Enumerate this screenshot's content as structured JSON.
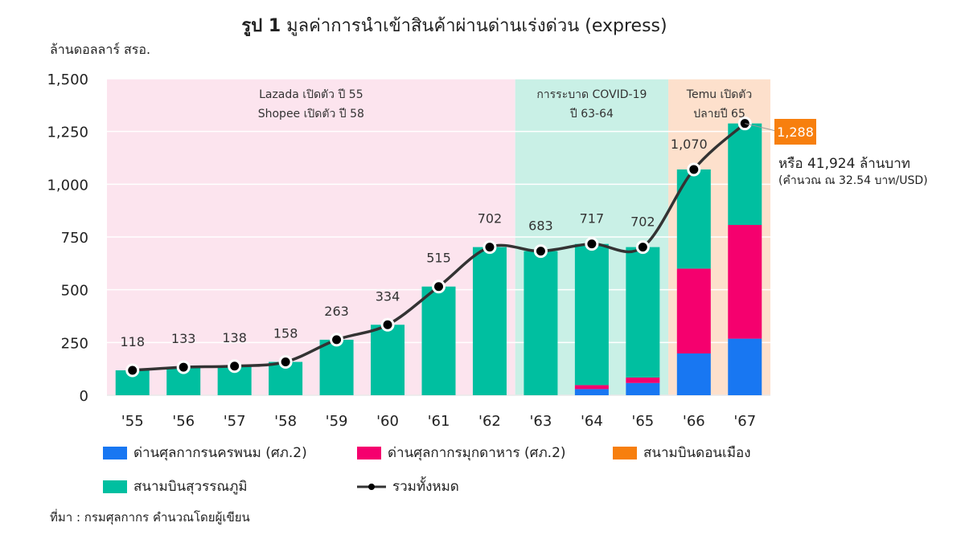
{
  "chart_data": {
    "type": "bar",
    "title_bold": "รูป 1",
    "title": "มูลค่าการนำเข้าสินค้าผ่านด่านเร่งด่วน (express)",
    "ylabel": "ล้านดอลลาร์ สรอ.",
    "ylim": [
      0,
      1500
    ],
    "yticks": [
      "0",
      "250",
      "500",
      "750",
      "1,000",
      "1,250",
      "1,500"
    ],
    "categories": [
      "'55",
      "'56",
      "'57",
      "'58",
      "'59",
      "'60",
      "'61",
      "'62",
      "'63",
      "'64",
      "'65",
      "'66",
      "'67"
    ],
    "series": [
      {
        "name": "ด่านศุลกากรนครพนม (ศภ.2)",
        "color": "#1877f2",
        "values": [
          0,
          0,
          0,
          0,
          0,
          0,
          0,
          0,
          0,
          29,
          58,
          198,
          268
        ]
      },
      {
        "name": "ด่านศุลกากรมุกดาหาร (ศภ.2)",
        "color": "#f5006e",
        "values": [
          0,
          0,
          0,
          0,
          0,
          0,
          0,
          0,
          0,
          19,
          26,
          402,
          539
        ]
      },
      {
        "name": "สนามบินดอนเมือง",
        "color": "#f77f0e",
        "values": [
          0,
          0,
          0,
          0,
          0,
          0,
          0,
          0,
          0,
          0,
          0,
          0,
          0
        ]
      },
      {
        "name": "สนามบินสุวรรณภูมิ",
        "color": "#00bfa0",
        "values": [
          118,
          133,
          138,
          158,
          263,
          334,
          515,
          702,
          683,
          669,
          618,
          470,
          481
        ]
      }
    ],
    "total": {
      "name": "รวมทั้งหมด",
      "color": "#333333",
      "values": [
        118,
        133,
        138,
        158,
        263,
        334,
        515,
        702,
        683,
        717,
        702,
        1070,
        1288
      ],
      "labels": [
        "118",
        "133",
        "138",
        "158",
        "263",
        "334",
        "515",
        "702",
        "683",
        "717",
        "702",
        "1,070",
        "1,288"
      ]
    },
    "periods": [
      {
        "lines": [
          "Lazada เปิดตัว ปี 55",
          "Shopee  เปิดตัว ปี 58"
        ],
        "color": "#fce4ee",
        "from": "'55",
        "to": "'62"
      },
      {
        "lines": [
          "การระบาด COVID-19",
          "ปี 63-64"
        ],
        "color": "#c9f0e6",
        "from": "'63",
        "to": "'65"
      },
      {
        "lines": [
          "Temu เปิดตัว",
          "ปลายปี 65"
        ],
        "color": "#fde0cc",
        "from": "'66",
        "to": "'67"
      }
    ],
    "annotation": {
      "value": "1,288",
      "color": "#f77f0e",
      "note": "หรือ 41,924 ล้านบาท",
      "subnote": "(คำนวณ ณ 32.54 บาท/USD)"
    },
    "source": "ที่มา : กรมศุลกากร คำนวณโดยผู้เขียน",
    "legend": "bottom"
  }
}
